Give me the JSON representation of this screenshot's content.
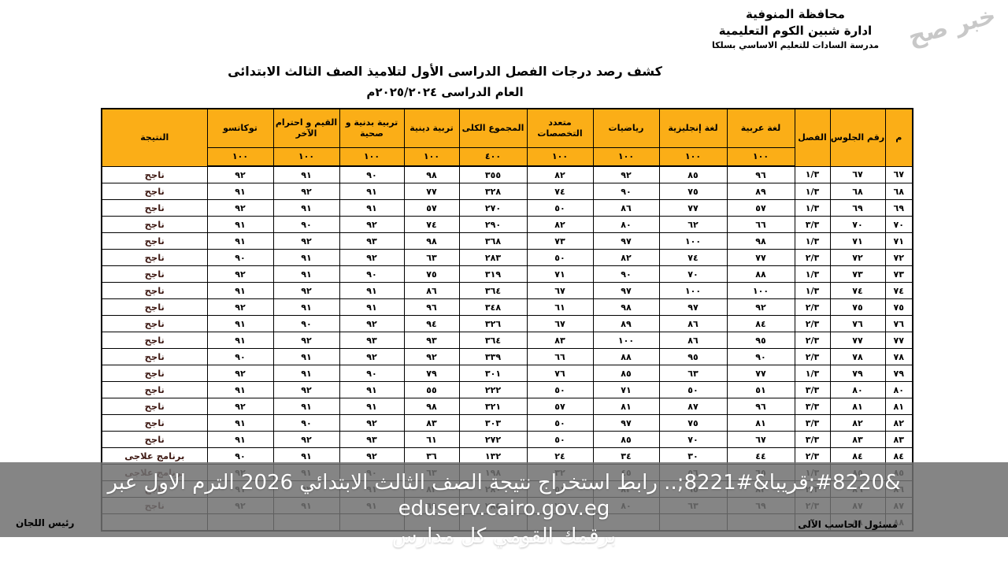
{
  "watermark": "خبر صح",
  "school_header": {
    "governorate": "محافظة المنوفية",
    "administration": "ادارة شبين الكوم التعليمية",
    "school": "مدرسة السادات للتعليم الاساسي بسلكا"
  },
  "title": "كشف رصد درجات الفصل الدراسى الأول لتلاميذ الصف الثالث الابتدائى",
  "subtitle": "العام الدراسى ٢٠٢٥/٢٠٢٤م",
  "table": {
    "columns": [
      {
        "key": "serial",
        "label": "م",
        "max": ""
      },
      {
        "key": "seat",
        "label": "رقم الجلوس",
        "max": ""
      },
      {
        "key": "classroom",
        "label": "الفصل",
        "max": ""
      },
      {
        "key": "arabic",
        "label": "لغة عربية",
        "max": "١٠٠"
      },
      {
        "key": "english",
        "label": "لغة إنجليزية",
        "max": "١٠٠"
      },
      {
        "key": "math",
        "label": "رياضيات",
        "max": "١٠٠"
      },
      {
        "key": "multidisciplinary",
        "label": "متعدد التخصصات",
        "max": "١٠٠"
      },
      {
        "key": "total",
        "label": "المجموع الكلى",
        "max": "٤٠٠"
      },
      {
        "key": "religious",
        "label": "تربية دينية",
        "max": "١٠٠"
      },
      {
        "key": "pe",
        "label": "تربية بدنية و صحية",
        "max": "١٠٠"
      },
      {
        "key": "values_respect",
        "label": "القيم و احترام الآخر",
        "max": "١٠٠"
      },
      {
        "key": "tokkatsu",
        "label": "توكاتسو",
        "max": "١٠٠"
      },
      {
        "key": "result",
        "label": "النتيجة",
        "max": ""
      }
    ],
    "rows": [
      {
        "serial": "٦٧",
        "seat": "٦٧",
        "classroom": "١/٣",
        "arabic": "٩٦",
        "english": "٨٥",
        "math": "٩٢",
        "multidisciplinary": "٨٢",
        "total": "٣٥٥",
        "religious": "٩٨",
        "pe": "٩٠",
        "values_respect": "٩١",
        "tokkatsu": "٩٢",
        "result": "ناجح"
      },
      {
        "serial": "٦٨",
        "seat": "٦٨",
        "classroom": "١/٣",
        "arabic": "٨٩",
        "english": "٧٥",
        "math": "٩٠",
        "multidisciplinary": "٧٤",
        "total": "٣٢٨",
        "religious": "٧٧",
        "pe": "٩١",
        "values_respect": "٩٢",
        "tokkatsu": "٩١",
        "result": "ناجح"
      },
      {
        "serial": "٦٩",
        "seat": "٦٩",
        "classroom": "١/٣",
        "arabic": "٥٧",
        "english": "٧٧",
        "math": "٨٦",
        "multidisciplinary": "٥٠",
        "total": "٢٧٠",
        "religious": "٥٧",
        "pe": "٩١",
        "values_respect": "٩١",
        "tokkatsu": "٩٢",
        "result": "ناجح"
      },
      {
        "serial": "٧٠",
        "seat": "٧٠",
        "classroom": "٣/٣",
        "arabic": "٦٦",
        "english": "٦٢",
        "math": "٨٠",
        "multidisciplinary": "٨٢",
        "total": "٢٩٠",
        "religious": "٧٤",
        "pe": "٩٢",
        "values_respect": "٩٠",
        "tokkatsu": "٩١",
        "result": "ناجح"
      },
      {
        "serial": "٧١",
        "seat": "٧١",
        "classroom": "١/٣",
        "arabic": "٩٨",
        "english": "١٠٠",
        "math": "٩٧",
        "multidisciplinary": "٧٣",
        "total": "٣٦٨",
        "religious": "٩٨",
        "pe": "٩٣",
        "values_respect": "٩٢",
        "tokkatsu": "٩١",
        "result": "ناجح"
      },
      {
        "serial": "٧٢",
        "seat": "٧٢",
        "classroom": "٢/٣",
        "arabic": "٧٧",
        "english": "٧٤",
        "math": "٨٢",
        "multidisciplinary": "٥٠",
        "total": "٢٨٣",
        "religious": "٦٣",
        "pe": "٩٢",
        "values_respect": "٩١",
        "tokkatsu": "٩٠",
        "result": "ناجح"
      },
      {
        "serial": "٧٣",
        "seat": "٧٣",
        "classroom": "١/٣",
        "arabic": "٨٨",
        "english": "٧٠",
        "math": "٩٠",
        "multidisciplinary": "٧١",
        "total": "٣١٩",
        "religious": "٧٥",
        "pe": "٩٠",
        "values_respect": "٩١",
        "tokkatsu": "٩٢",
        "result": "ناجح"
      },
      {
        "serial": "٧٤",
        "seat": "٧٤",
        "classroom": "١/٣",
        "arabic": "١٠٠",
        "english": "١٠٠",
        "math": "٩٧",
        "multidisciplinary": "٦٧",
        "total": "٣٦٤",
        "religious": "٨٦",
        "pe": "٩١",
        "values_respect": "٩٢",
        "tokkatsu": "٩١",
        "result": "ناجح"
      },
      {
        "serial": "٧٥",
        "seat": "٧٥",
        "classroom": "٢/٣",
        "arabic": "٩٢",
        "english": "٩٧",
        "math": "٩٨",
        "multidisciplinary": "٦١",
        "total": "٣٤٨",
        "religious": "٩٦",
        "pe": "٩١",
        "values_respect": "٩١",
        "tokkatsu": "٩٢",
        "result": "ناجح"
      },
      {
        "serial": "٧٦",
        "seat": "٧٦",
        "classroom": "٢/٣",
        "arabic": "٨٤",
        "english": "٨٦",
        "math": "٨٩",
        "multidisciplinary": "٦٧",
        "total": "٣٢٦",
        "religious": "٩٤",
        "pe": "٩٢",
        "values_respect": "٩٠",
        "tokkatsu": "٩١",
        "result": "ناجح"
      },
      {
        "serial": "٧٧",
        "seat": "٧٧",
        "classroom": "٢/٣",
        "arabic": "٩٥",
        "english": "٨٦",
        "math": "١٠٠",
        "multidisciplinary": "٨٣",
        "total": "٣٦٤",
        "religious": "٩٣",
        "pe": "٩٣",
        "values_respect": "٩٢",
        "tokkatsu": "٩١",
        "result": "ناجح"
      },
      {
        "serial": "٧٨",
        "seat": "٧٨",
        "classroom": "٢/٣",
        "arabic": "٩٠",
        "english": "٩٥",
        "math": "٨٨",
        "multidisciplinary": "٦٦",
        "total": "٣٣٩",
        "religious": "٩٢",
        "pe": "٩٢",
        "values_respect": "٩١",
        "tokkatsu": "٩٠",
        "result": "ناجح"
      },
      {
        "serial": "٧٩",
        "seat": "٧٩",
        "classroom": "١/٣",
        "arabic": "٧٧",
        "english": "٦٣",
        "math": "٨٥",
        "multidisciplinary": "٧٦",
        "total": "٣٠١",
        "religious": "٧٩",
        "pe": "٩٠",
        "values_respect": "٩١",
        "tokkatsu": "٩٢",
        "result": "ناجح"
      },
      {
        "serial": "٨٠",
        "seat": "٨٠",
        "classroom": "٣/٣",
        "arabic": "٥١",
        "english": "٥٠",
        "math": "٧١",
        "multidisciplinary": "٥٠",
        "total": "٢٢٢",
        "religious": "٥٥",
        "pe": "٩١",
        "values_respect": "٩٢",
        "tokkatsu": "٩١",
        "result": "ناجح"
      },
      {
        "serial": "٨١",
        "seat": "٨١",
        "classroom": "٣/٣",
        "arabic": "٩٦",
        "english": "٨٧",
        "math": "٨١",
        "multidisciplinary": "٥٧",
        "total": "٣٢١",
        "religious": "٩٨",
        "pe": "٩١",
        "values_respect": "٩١",
        "tokkatsu": "٩٢",
        "result": "ناجح"
      },
      {
        "serial": "٨٢",
        "seat": "٨٢",
        "classroom": "٣/٣",
        "arabic": "٨١",
        "english": "٧٥",
        "math": "٩٧",
        "multidisciplinary": "٥٠",
        "total": "٣٠٣",
        "religious": "٨٣",
        "pe": "٩٢",
        "values_respect": "٩٠",
        "tokkatsu": "٩١",
        "result": "ناجح"
      },
      {
        "serial": "٨٣",
        "seat": "٨٣",
        "classroom": "٣/٣",
        "arabic": "٦٧",
        "english": "٧٠",
        "math": "٨٥",
        "multidisciplinary": "٥٠",
        "total": "٢٧٢",
        "religious": "٦١",
        "pe": "٩٣",
        "values_respect": "٩٢",
        "tokkatsu": "٩١",
        "result": "ناجح"
      },
      {
        "serial": "٨٤",
        "seat": "٨٤",
        "classroom": "٢/٣",
        "arabic": "٤٤",
        "english": "٣٠",
        "math": "٣٤",
        "multidisciplinary": "٢٤",
        "total": "١٣٢",
        "religious": "٣٦",
        "pe": "٩٢",
        "values_respect": "٩١",
        "tokkatsu": "٩٠",
        "result": "برنامج علاجى"
      },
      {
        "serial": "٨٥",
        "seat": "٨٥",
        "classroom": "١/٣",
        "arabic": "٦٥",
        "english": "٥٦",
        "math": "٤٥",
        "multidisciplinary": "٣٢",
        "total": "١٩٨",
        "religious": "٦٣",
        "pe": "٩٠",
        "values_respect": "٩١",
        "tokkatsu": "٩٢",
        "result": "برنامج علاجى"
      },
      {
        "serial": "٨٦",
        "seat": "٨٦",
        "classroom": "٢/٣",
        "arabic": "٨٢",
        "english": "٦٥",
        "math": "٨٢",
        "multidisciplinary": "٥١",
        "total": "٢٨٠",
        "religious": "٨٢",
        "pe": "٩١",
        "values_respect": "٩٢",
        "tokkatsu": "٩١",
        "result": "ناجح"
      },
      {
        "serial": "٨٧",
        "seat": "٨٧",
        "classroom": "٢/٣",
        "arabic": "٦٩",
        "english": "٦٣",
        "math": "٨٠",
        "multidisciplinary": "٧٣",
        "total": "٢٨٥",
        "religious": "٦٩",
        "pe": "٩١",
        "values_respect": "٩١",
        "tokkatsu": "٩٢",
        "result": "ناجح"
      },
      {
        "serial": "٨٨",
        "seat": "٨٨",
        "classroom": "",
        "arabic": "",
        "english": "",
        "math": "",
        "multidisciplinary": "",
        "total": "",
        "religious": "",
        "pe": "",
        "values_respect": "",
        "tokkatsu": "",
        "result": ""
      }
    ]
  },
  "overlay": {
    "caption_line1": "&#8220;قريبا&#8221;.. رابط استخراج نتيجة الصف الثالث الابتدائي 2026 الترم الاول عبر eduserv.cairo.gov.eg",
    "caption_line2": "برقمك القومي كل مدارس"
  },
  "signatures": {
    "computer_officer": "مسئول الحاسب الآلى",
    "committees_head": "رئيس اللجان"
  },
  "colors": {
    "header_bg": "#FBAE17",
    "max_row_text": "#8B1A10",
    "result_text": "#3F1A14",
    "overlay_bg": "rgba(112,112,112,0.85)",
    "caption_text": "#FFFFFF",
    "border": "#000000"
  }
}
